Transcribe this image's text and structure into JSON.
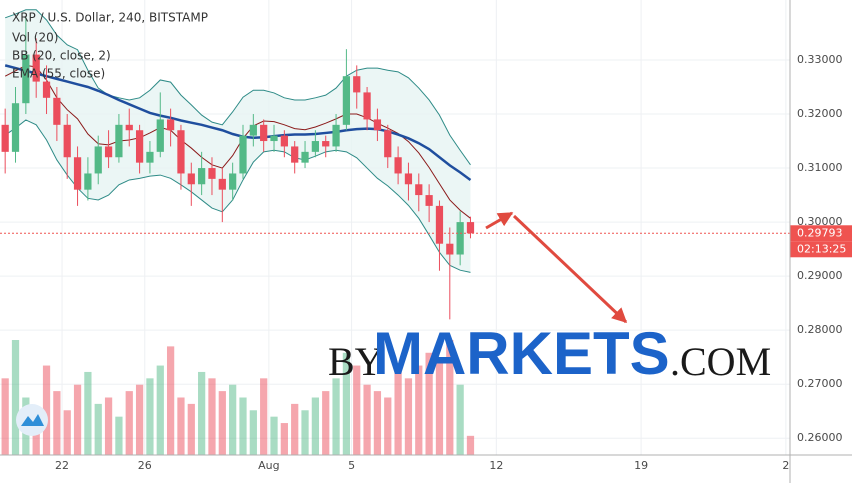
{
  "chart_data": {
    "type": "candlestick",
    "title": "XRP / U.S. Dollar, 240, BITSTAMP",
    "indicators": [
      "Vol (20)",
      "BB (20, close, 2)",
      "EMA (55, close)"
    ],
    "x": [
      19.25,
      19.75,
      20.25,
      20.75,
      21.25,
      21.75,
      22.25,
      22.75,
      23.25,
      23.75,
      24.25,
      24.75,
      25.25,
      25.75,
      26.25,
      26.75,
      27.25,
      27.75,
      28.25,
      28.75,
      29.25,
      29.75,
      30.25,
      30.75,
      31.25,
      31.75,
      32.25,
      32.75,
      33.25,
      33.75,
      34.25,
      34.75,
      35.25,
      35.75,
      36.25,
      36.75,
      37.25,
      37.75,
      38.25,
      38.75,
      39.25,
      39.75,
      40.25,
      40.75,
      41.25,
      41.75
    ],
    "open": [
      0.318,
      0.313,
      0.322,
      0.331,
      0.326,
      0.323,
      0.318,
      0.312,
      0.306,
      0.309,
      0.314,
      0.312,
      0.318,
      0.317,
      0.311,
      0.313,
      0.319,
      0.317,
      0.309,
      0.307,
      0.31,
      0.308,
      0.306,
      0.309,
      0.316,
      0.318,
      0.315,
      0.316,
      0.314,
      0.311,
      0.313,
      0.315,
      0.314,
      0.318,
      0.327,
      0.324,
      0.319,
      0.317,
      0.312,
      0.309,
      0.307,
      0.305,
      0.303,
      0.296,
      0.294,
      0.3
    ],
    "high": [
      0.321,
      0.325,
      0.338,
      0.334,
      0.329,
      0.325,
      0.32,
      0.314,
      0.312,
      0.316,
      0.317,
      0.32,
      0.321,
      0.318,
      0.315,
      0.324,
      0.321,
      0.318,
      0.311,
      0.313,
      0.312,
      0.31,
      0.311,
      0.318,
      0.32,
      0.319,
      0.318,
      0.317,
      0.315,
      0.315,
      0.317,
      0.316,
      0.32,
      0.332,
      0.329,
      0.325,
      0.321,
      0.318,
      0.314,
      0.311,
      0.309,
      0.307,
      0.304,
      0.299,
      0.302,
      0.301
    ],
    "low": [
      0.309,
      0.311,
      0.32,
      0.323,
      0.32,
      0.315,
      0.308,
      0.303,
      0.304,
      0.307,
      0.31,
      0.311,
      0.314,
      0.309,
      0.309,
      0.312,
      0.314,
      0.306,
      0.303,
      0.305,
      0.305,
      0.3,
      0.304,
      0.308,
      0.314,
      0.313,
      0.313,
      0.312,
      0.309,
      0.31,
      0.312,
      0.312,
      0.313,
      0.317,
      0.321,
      0.317,
      0.315,
      0.31,
      0.307,
      0.304,
      0.302,
      0.3,
      0.291,
      0.282,
      0.292,
      0.297
    ],
    "close": [
      0.313,
      0.322,
      0.331,
      0.326,
      0.323,
      0.318,
      0.312,
      0.306,
      0.309,
      0.314,
      0.312,
      0.318,
      0.317,
      0.311,
      0.313,
      0.319,
      0.317,
      0.309,
      0.307,
      0.31,
      0.308,
      0.306,
      0.309,
      0.316,
      0.318,
      0.315,
      0.316,
      0.314,
      0.311,
      0.313,
      0.315,
      0.314,
      0.318,
      0.327,
      0.324,
      0.319,
      0.317,
      0.312,
      0.309,
      0.307,
      0.305,
      0.303,
      0.296,
      0.294,
      0.3,
      0.29793
    ],
    "volume": [
      12,
      18,
      9,
      6,
      14,
      10,
      7,
      11,
      13,
      8,
      9,
      6,
      10,
      11,
      12,
      14,
      17,
      9,
      8,
      13,
      12,
      10,
      11,
      9,
      7,
      12,
      6,
      5,
      8,
      7,
      9,
      10,
      12,
      16,
      14,
      11,
      10,
      9,
      13,
      12,
      14,
      16,
      15,
      18,
      11,
      3
    ],
    "bb_upper": [
      0.3378,
      0.3385,
      0.3393,
      0.3393,
      0.3374,
      0.3346,
      0.3328,
      0.3319,
      0.3281,
      0.3248,
      0.3235,
      0.323,
      0.3226,
      0.323,
      0.3244,
      0.3263,
      0.3259,
      0.3235,
      0.3217,
      0.3198,
      0.3185,
      0.318,
      0.3204,
      0.3231,
      0.3244,
      0.3244,
      0.3239,
      0.323,
      0.3226,
      0.3226,
      0.323,
      0.3235,
      0.3248,
      0.327,
      0.3281,
      0.3285,
      0.3285,
      0.3281,
      0.3278,
      0.3267,
      0.3248,
      0.3226,
      0.3198,
      0.3161,
      0.3133,
      0.3106
    ],
    "bb_basis": [
      0.327,
      0.328,
      0.329,
      0.3287,
      0.3263,
      0.323,
      0.3208,
      0.3191,
      0.3163,
      0.3145,
      0.3143,
      0.315,
      0.3152,
      0.3156,
      0.3165,
      0.3175,
      0.317,
      0.3152,
      0.3137,
      0.312,
      0.3106,
      0.31,
      0.3123,
      0.3155,
      0.3178,
      0.3187,
      0.3186,
      0.318,
      0.3173,
      0.3171,
      0.3176,
      0.3183,
      0.3191,
      0.32,
      0.32,
      0.3193,
      0.3183,
      0.3174,
      0.3164,
      0.3149,
      0.3128,
      0.3101,
      0.3071,
      0.3041,
      0.3022,
      0.3007
    ],
    "bb_lower": [
      0.3161,
      0.3174,
      0.3189,
      0.318,
      0.3152,
      0.3115,
      0.3087,
      0.3063,
      0.3044,
      0.3041,
      0.305,
      0.3069,
      0.3078,
      0.3081,
      0.3085,
      0.3087,
      0.3081,
      0.3069,
      0.3056,
      0.3041,
      0.3026,
      0.3019,
      0.3041,
      0.3078,
      0.3111,
      0.313,
      0.3133,
      0.313,
      0.3119,
      0.3115,
      0.3122,
      0.313,
      0.3133,
      0.313,
      0.3119,
      0.31,
      0.3081,
      0.3067,
      0.305,
      0.3031,
      0.3007,
      0.2976,
      0.2944,
      0.292,
      0.2911,
      0.2907
    ],
    "ema": [
      0.329,
      0.3285,
      0.328,
      0.3275,
      0.327,
      0.3265,
      0.326,
      0.3255,
      0.325,
      0.3243,
      0.3235,
      0.3226,
      0.3218,
      0.321,
      0.3202,
      0.3197,
      0.3193,
      0.3188,
      0.3184,
      0.318,
      0.3175,
      0.317,
      0.3163,
      0.3158,
      0.3156,
      0.3157,
      0.3159,
      0.3161,
      0.3162,
      0.3162,
      0.3163,
      0.3165,
      0.3167,
      0.317,
      0.3172,
      0.3173,
      0.3172,
      0.3168,
      0.3162,
      0.3155,
      0.3146,
      0.3135,
      0.312,
      0.3105,
      0.3092,
      0.3078
    ],
    "colors": {
      "up": "#53b987",
      "down": "#eb4d5c",
      "bb": "#2e8b87",
      "bb_fill": "#e6f4f2",
      "bb_basis": "#8b1a1a",
      "ema": "#1f4e9e",
      "last": "#ef5350"
    },
    "xlim": [
      19,
      57.2
    ],
    "xticks": [
      22,
      26,
      {
        "value": 32,
        "label": "Aug"
      },
      {
        "value": 36,
        "label": "5"
      },
      {
        "value": 43,
        "label": "12"
      },
      {
        "value": 50,
        "label": "19"
      },
      {
        "value": 57,
        "label": "2"
      }
    ],
    "ylim": [
      0.2569,
      0.3411
    ],
    "yticks": [
      {
        "value": 0.26,
        "label": "0.26000"
      },
      {
        "value": 0.27,
        "label": "0.27000"
      },
      {
        "value": 0.28,
        "label": "0.28000"
      },
      {
        "value": 0.29,
        "label": "0.29000"
      },
      {
        "value": 0.3,
        "label": "0.30000"
      },
      {
        "value": 0.31,
        "label": "0.31000"
      },
      {
        "value": 0.32,
        "label": "0.32000"
      },
      {
        "value": 0.33,
        "label": "0.33000"
      }
    ],
    "last_price": 0.29793,
    "countdown": "02:13:25",
    "grid": true,
    "watermark": [
      "BY",
      "MARKETS",
      ".COM"
    ]
  }
}
